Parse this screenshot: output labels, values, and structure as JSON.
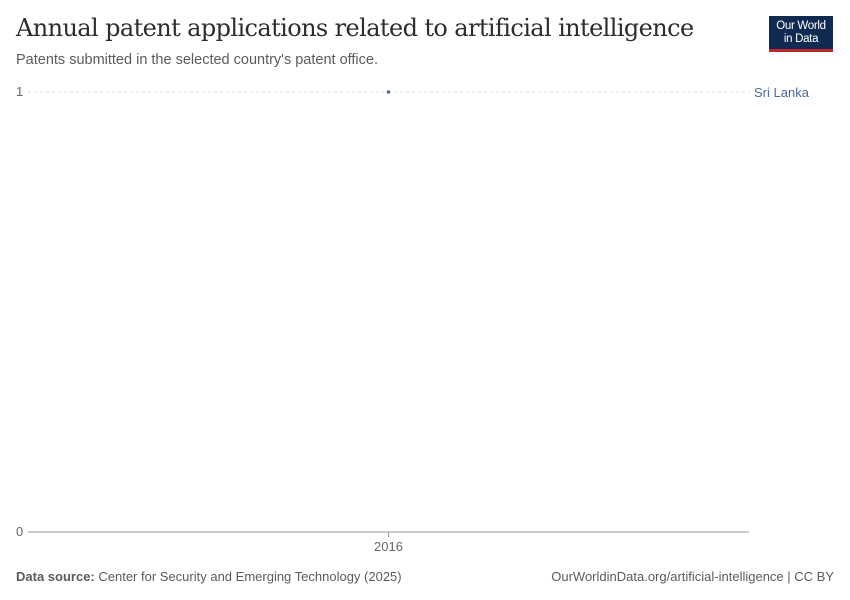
{
  "header": {
    "title": "Annual patent applications related to artificial intelligence",
    "subtitle": "Patents submitted in the selected country's patent office.",
    "logo_line1": "Our World",
    "logo_line2": "in Data"
  },
  "chart_data": {
    "type": "line",
    "title": "Annual patent applications related to artificial intelligence",
    "subtitle": "Patents submitted in the selected country's patent office.",
    "x_ticks": [
      "2016"
    ],
    "y_ticks": [
      "0",
      "1"
    ],
    "ylim": [
      0,
      1
    ],
    "grid": "horizontal-dashed",
    "series": [
      {
        "name": "Sri Lanka",
        "color": "#4c6a9c",
        "points": [
          {
            "x": 2016,
            "y": 1
          }
        ]
      }
    ]
  },
  "footer": {
    "source_label": "Data source:",
    "source_text": " Center for Security and Emerging Technology (2025)",
    "url": "OurWorldinData.org/artificial-intelligence | CC BY"
  }
}
